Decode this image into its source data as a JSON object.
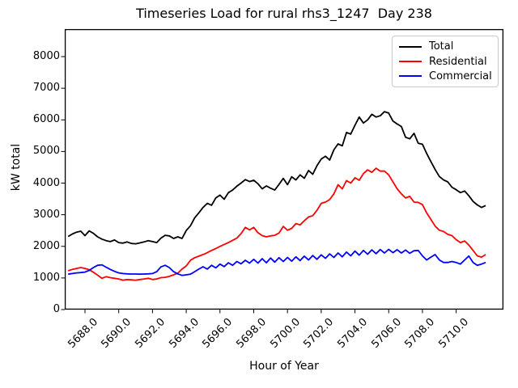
{
  "figure": {
    "background": "#ffffff"
  },
  "chart_data": {
    "type": "line",
    "title": "Timeseries Load for rural rhs3_1247  Day 238",
    "xlabel": "Hour of Year",
    "ylabel": "kW total",
    "grid": false,
    "legend_position": "upper right",
    "xlim": [
      5686.8,
      5712.8
    ],
    "ylim": [
      0,
      8870
    ],
    "xticks": [
      5688,
      5690,
      5692,
      5694,
      5696,
      5698,
      5700,
      5702,
      5704,
      5706,
      5708,
      5710
    ],
    "xtick_labels": [
      "5688.0",
      "5690.0",
      "5692.0",
      "5694.0",
      "5696.0",
      "5698.0",
      "5700.0",
      "5702.0",
      "5704.0",
      "5706.0",
      "5708.0",
      "5710.0"
    ],
    "yticks": [
      0,
      1000,
      2000,
      3000,
      4000,
      5000,
      6000,
      7000,
      8000
    ],
    "ytick_labels": [
      "0",
      "1000",
      "2000",
      "3000",
      "4000",
      "5000",
      "6000",
      "7000",
      "8000"
    ],
    "x_start": 5687.0,
    "x_step": 0.25,
    "series": [
      {
        "name": "Total",
        "color": "#000000",
        "values": [
          2310,
          2390,
          2450,
          2480,
          2340,
          2490,
          2410,
          2300,
          2230,
          2180,
          2150,
          2200,
          2120,
          2100,
          2140,
          2090,
          2080,
          2110,
          2140,
          2180,
          2150,
          2120,
          2260,
          2350,
          2330,
          2250,
          2300,
          2250,
          2500,
          2650,
          2900,
          3060,
          3230,
          3360,
          3300,
          3530,
          3620,
          3490,
          3700,
          3780,
          3900,
          4000,
          4110,
          4050,
          4090,
          3980,
          3820,
          3910,
          3840,
          3780,
          3960,
          4150,
          3950,
          4200,
          4100,
          4260,
          4150,
          4400,
          4280,
          4550,
          4760,
          4850,
          4730,
          5050,
          5240,
          5180,
          5600,
          5550,
          5830,
          6090,
          5900,
          6000,
          6175,
          6090,
          6130,
          6260,
          6215,
          5960,
          5870,
          5790,
          5450,
          5400,
          5575,
          5260,
          5230,
          4940,
          4680,
          4430,
          4210,
          4100,
          4040,
          3870,
          3790,
          3700,
          3750,
          3600,
          3420,
          3310,
          3230,
          3290
        ]
      },
      {
        "name": "Residential",
        "color": "#ff0000",
        "values": [
          1230,
          1270,
          1300,
          1330,
          1300,
          1260,
          1180,
          1090,
          990,
          1040,
          1010,
          990,
          970,
          930,
          950,
          940,
          930,
          950,
          970,
          990,
          950,
          970,
          1010,
          1020,
          1050,
          1100,
          1150,
          1280,
          1380,
          1560,
          1640,
          1690,
          1740,
          1800,
          1870,
          1930,
          2000,
          2060,
          2120,
          2190,
          2260,
          2400,
          2600,
          2520,
          2600,
          2430,
          2340,
          2300,
          2330,
          2350,
          2420,
          2630,
          2510,
          2570,
          2720,
          2680,
          2810,
          2930,
          2970,
          3140,
          3360,
          3400,
          3480,
          3660,
          3950,
          3820,
          4080,
          4000,
          4170,
          4090,
          4300,
          4420,
          4340,
          4470,
          4380,
          4380,
          4260,
          4040,
          3820,
          3660,
          3530,
          3580,
          3400,
          3390,
          3320,
          3060,
          2850,
          2640,
          2510,
          2470,
          2380,
          2340,
          2210,
          2120,
          2170,
          2040,
          1870,
          1700,
          1660,
          1740
        ]
      },
      {
        "name": "Commercial",
        "color": "#0000ff",
        "values": [
          1120,
          1140,
          1160,
          1170,
          1185,
          1240,
          1330,
          1400,
          1415,
          1340,
          1270,
          1210,
          1160,
          1140,
          1130,
          1125,
          1125,
          1120,
          1125,
          1130,
          1140,
          1200,
          1350,
          1400,
          1330,
          1200,
          1130,
          1080,
          1100,
          1120,
          1200,
          1280,
          1355,
          1280,
          1400,
          1320,
          1440,
          1360,
          1480,
          1400,
          1520,
          1450,
          1560,
          1470,
          1590,
          1470,
          1610,
          1480,
          1630,
          1500,
          1640,
          1520,
          1650,
          1530,
          1670,
          1550,
          1690,
          1570,
          1710,
          1590,
          1730,
          1620,
          1760,
          1650,
          1790,
          1670,
          1820,
          1700,
          1850,
          1720,
          1870,
          1750,
          1890,
          1770,
          1900,
          1790,
          1905,
          1800,
          1895,
          1790,
          1885,
          1780,
          1860,
          1870,
          1700,
          1570,
          1660,
          1740,
          1570,
          1490,
          1490,
          1520,
          1490,
          1440,
          1570,
          1695,
          1490,
          1400,
          1440,
          1490
        ]
      }
    ]
  }
}
